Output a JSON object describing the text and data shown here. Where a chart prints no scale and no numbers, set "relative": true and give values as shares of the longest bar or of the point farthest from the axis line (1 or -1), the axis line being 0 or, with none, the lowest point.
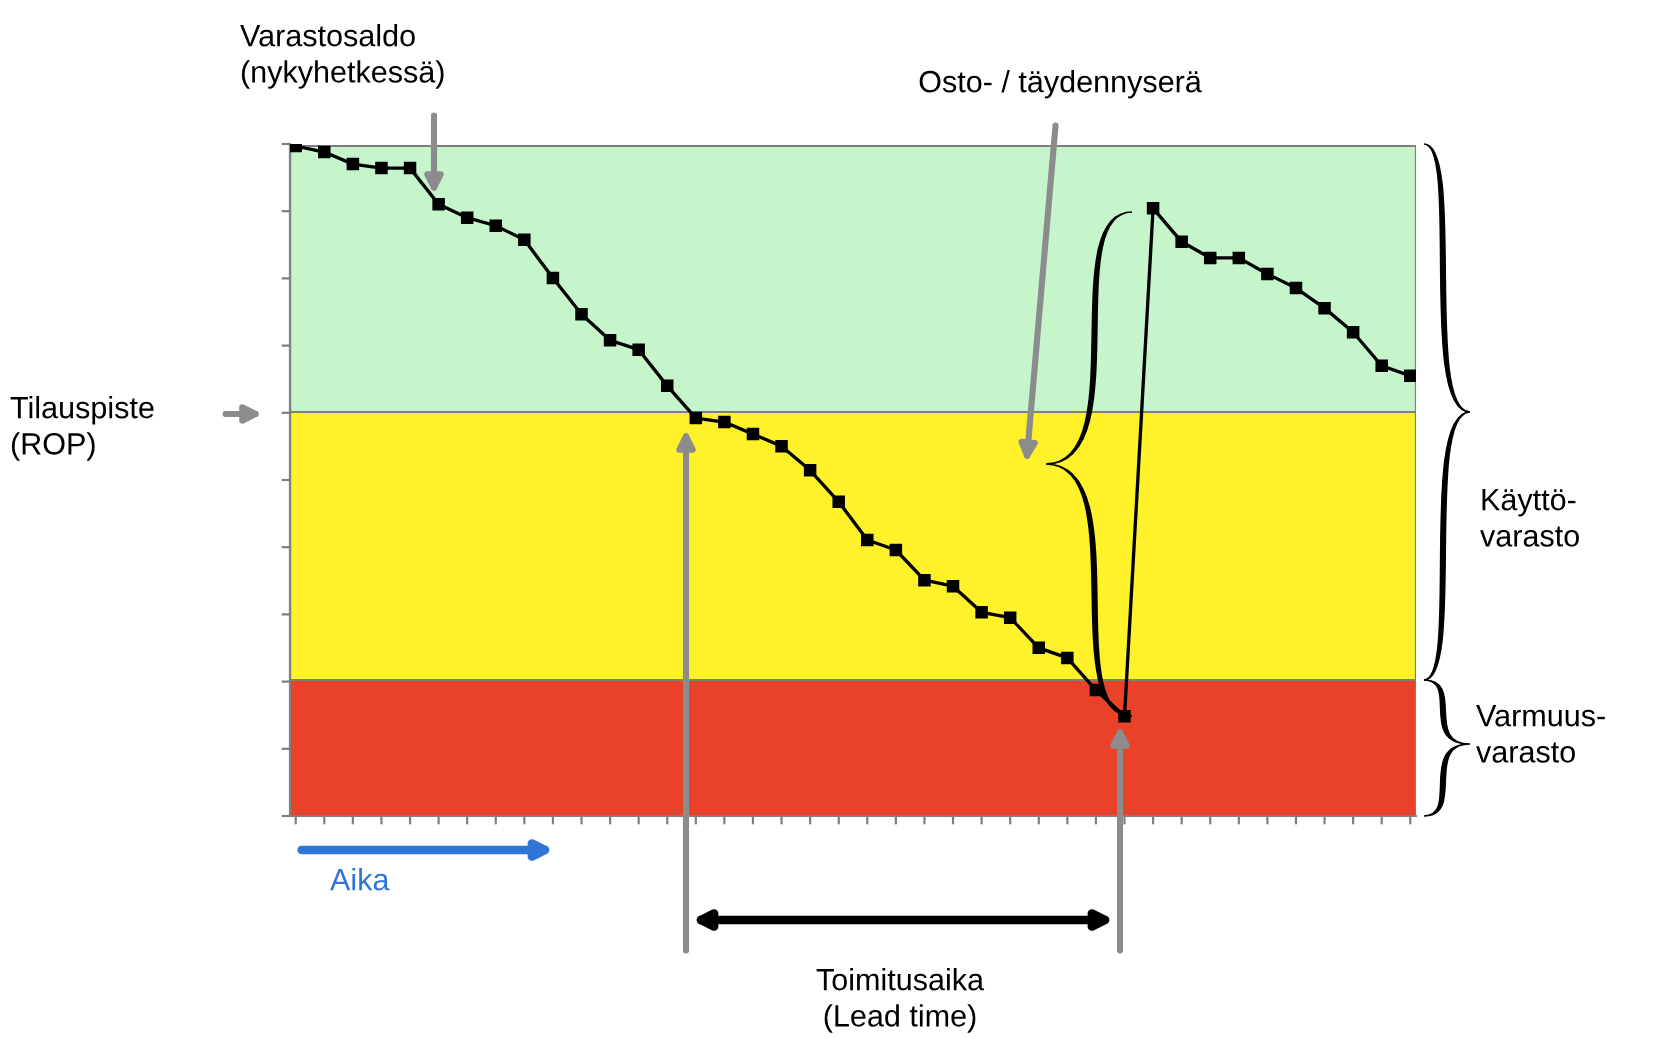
{
  "chart_data": {
    "type": "line",
    "relative": true,
    "tick_labels": false,
    "grid": false,
    "legend": false,
    "marker": "square",
    "line_style": "solid",
    "categories": [
      null,
      null,
      null,
      null,
      null,
      null,
      null,
      null,
      null,
      null,
      null,
      null,
      null,
      null,
      null,
      null,
      null,
      null,
      null,
      null,
      null,
      null,
      null,
      null,
      null,
      null,
      null,
      null,
      null,
      null,
      null,
      null,
      null,
      null,
      null,
      null,
      null,
      null,
      null,
      null
    ],
    "series": [
      {
        "color": "#000000",
        "values": [
          1.0,
          0.991,
          0.973,
          0.967,
          0.967,
          0.913,
          0.893,
          0.881,
          0.86,
          0.803,
          0.749,
          0.71,
          0.696,
          0.642,
          0.594,
          0.588,
          0.57,
          0.552,
          0.516,
          0.469,
          0.412,
          0.397,
          0.352,
          0.343,
          0.304,
          0.296,
          0.251,
          0.236,
          0.188,
          0.149,
          0.907,
          0.857,
          0.833,
          0.833,
          0.809,
          0.788,
          0.758,
          0.722,
          0.672,
          0.657
        ]
      }
    ],
    "bands": [
      {
        "axis": "y",
        "from": 0,
        "to": 0.203,
        "color": "#ea4228"
      },
      {
        "axis": "y",
        "from": 0.203,
        "to": 0.603,
        "color": "#fff22a"
      },
      {
        "axis": "y",
        "from": 0.603,
        "to": 1.0,
        "color": "#c6f5cc"
      }
    ],
    "annotations": [
      "Varastosaldo\n(nykyhetkessä)",
      "Osto- / täydennyserä",
      "Tilauspiste\n(ROP)",
      "Käyttö-\nvarasto",
      "Varmuus-\nvarasto",
      "Aika",
      "Toimitusaika\n(Lead time)"
    ]
  }
}
